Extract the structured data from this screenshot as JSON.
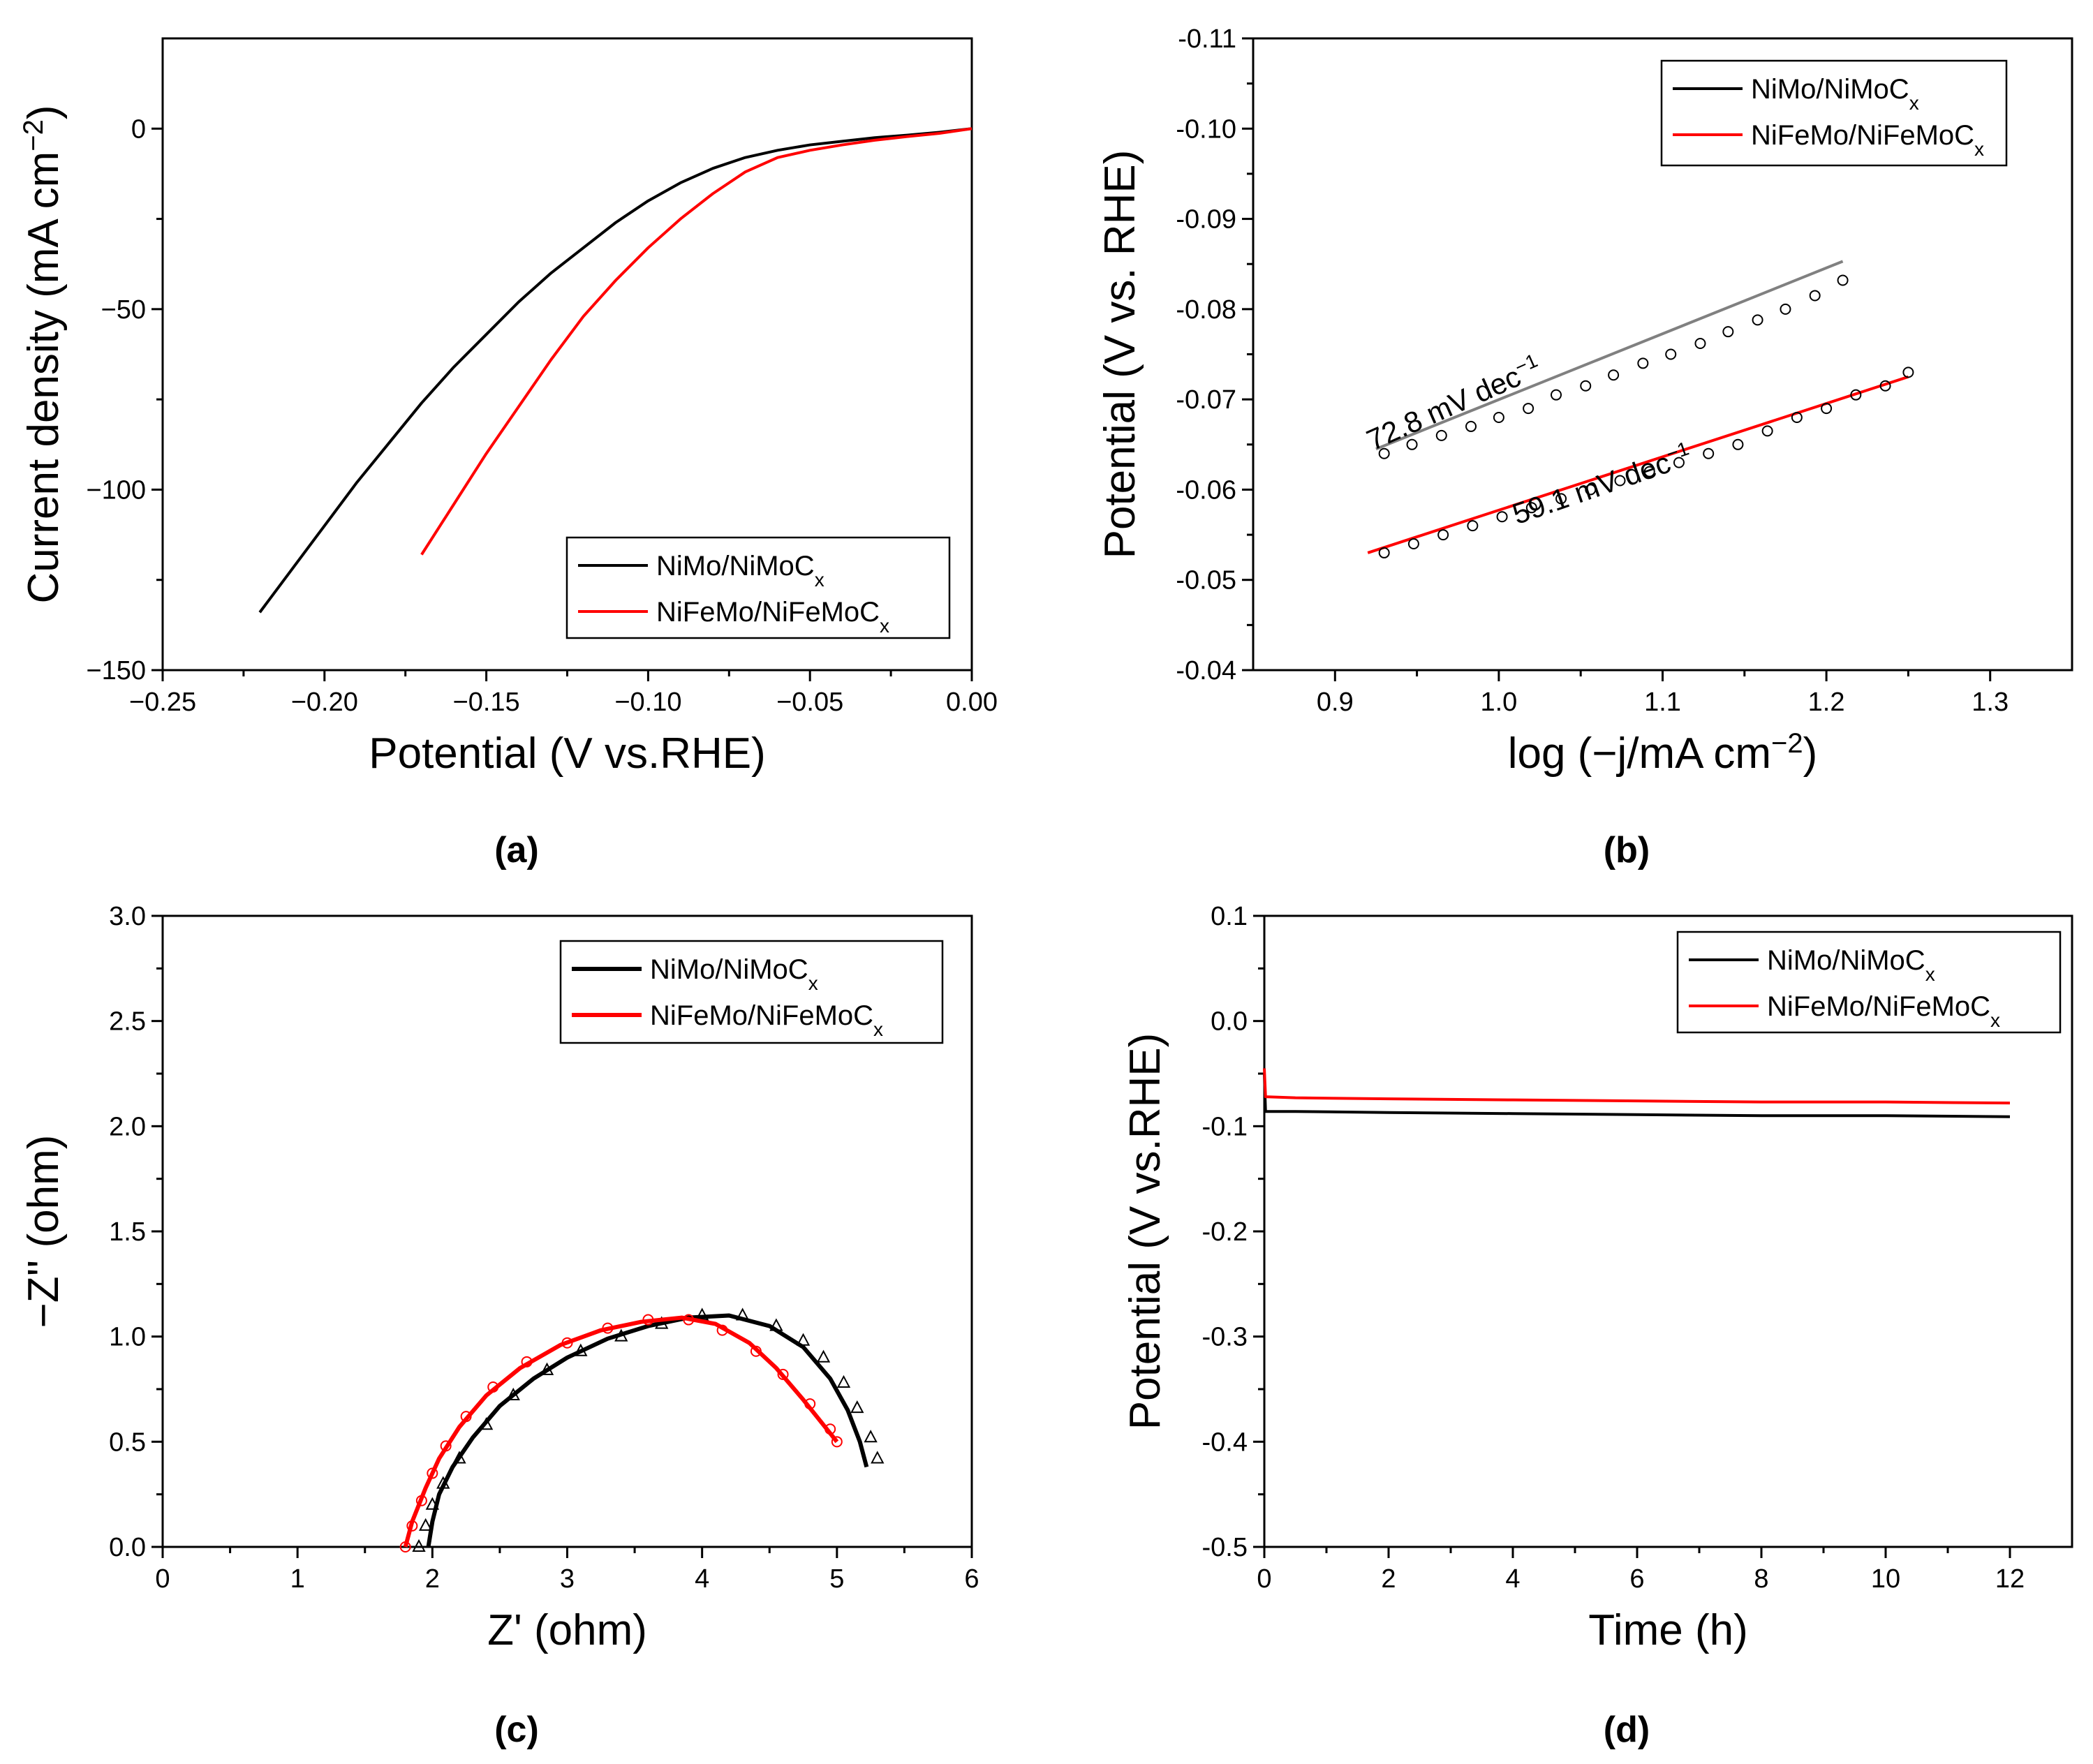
{
  "chart_data": [
    {
      "panel": "(a)",
      "type": "line",
      "xlabel": "Potential (V vs.RHE)",
      "ylabel": "Current density (mA cm",
      "ylabel_sup": "−2",
      "ylabel_end": ")",
      "xlim": [
        -0.25,
        0.0
      ],
      "ylim": [
        -150,
        25
      ],
      "xticks": [
        -0.25,
        -0.2,
        -0.15,
        -0.1,
        -0.05,
        0.0
      ],
      "xtick_labels": [
        "−0.25",
        "−0.20",
        "−0.15",
        "−0.10",
        "−0.05",
        "0.00"
      ],
      "yticks": [
        -150,
        -100,
        -50,
        0
      ],
      "ytick_labels": [
        "−150",
        "−100",
        "−50",
        "0"
      ],
      "legend": "bottom-right",
      "series": [
        {
          "name": "NiMo/NiMoC",
          "sub": "x",
          "color": "#000000",
          "x": [
            -0.22,
            -0.21,
            -0.2,
            -0.19,
            -0.18,
            -0.17,
            -0.16,
            -0.15,
            -0.14,
            -0.13,
            -0.12,
            -0.11,
            -0.1,
            -0.09,
            -0.08,
            -0.07,
            -0.06,
            -0.05,
            -0.04,
            -0.03,
            -0.02,
            -0.01,
            0.0
          ],
          "y": [
            -134,
            -122,
            -110,
            -98,
            -87,
            -76,
            -66,
            -57,
            -48,
            -40,
            -33,
            -26,
            -20,
            -15,
            -11,
            -8,
            -6,
            -4.5,
            -3.5,
            -2.5,
            -1.8,
            -1,
            0
          ]
        },
        {
          "name": "NiFeMo/NiFeMoC",
          "sub": "x",
          "color": "#ff0000",
          "x": [
            -0.17,
            -0.16,
            -0.15,
            -0.14,
            -0.13,
            -0.12,
            -0.11,
            -0.1,
            -0.09,
            -0.08,
            -0.07,
            -0.06,
            -0.05,
            -0.04,
            -0.03,
            -0.02,
            -0.01,
            0.0
          ],
          "y": [
            -118,
            -104,
            -90,
            -77,
            -64,
            -52,
            -42,
            -33,
            -25,
            -18,
            -12,
            -8,
            -6,
            -4.5,
            -3.2,
            -2.2,
            -1.3,
            0
          ]
        }
      ]
    },
    {
      "panel": "(b)",
      "type": "scatter",
      "xlabel": "log (−j/mA cm",
      "xlabel_sup": "−2",
      "xlabel_end": ")",
      "ylabel": "Potential (V vs. RHE)",
      "xlim": [
        0.85,
        1.35
      ],
      "ylim": [
        -0.04,
        -0.11
      ],
      "xticks": [
        0.9,
        1.0,
        1.1,
        1.2,
        1.3
      ],
      "xtick_labels": [
        "0.9",
        "1.0",
        "1.1",
        "1.2",
        "1.3"
      ],
      "yticks": [
        -0.04,
        -0.05,
        -0.06,
        -0.07,
        -0.08,
        -0.09,
        -0.1,
        -0.11
      ],
      "ytick_labels": [
        "-0.04",
        "-0.05",
        "-0.06",
        "-0.07",
        "-0.08",
        "-0.09",
        "-0.10",
        "-0.11"
      ],
      "legend": "top-right",
      "annotations": [
        {
          "text": "72.8 mV dec",
          "sup": "−1",
          "x": 0.975,
          "y": -0.0685,
          "angle_deg": -24
        },
        {
          "text": "59.1 mV dec",
          "sup": "−1",
          "x": 1.065,
          "y": -0.0595,
          "angle_deg": -19
        }
      ],
      "series": [
        {
          "name": "NiMo/NiMoC",
          "sub": "x",
          "color": "#000000",
          "fit_color": "#808080",
          "x": [
            0.93,
            0.947,
            0.965,
            0.983,
            1.0,
            1.018,
            1.035,
            1.053,
            1.07,
            1.088,
            1.105,
            1.123,
            1.14,
            1.158,
            1.175,
            1.193,
            1.21
          ],
          "y": [
            -0.064,
            -0.065,
            -0.066,
            -0.067,
            -0.068,
            -0.069,
            -0.0705,
            -0.0715,
            -0.0727,
            -0.074,
            -0.075,
            -0.0762,
            -0.0775,
            -0.0788,
            -0.08,
            -0.0815,
            -0.0832
          ],
          "fit_x": [
            0.925,
            1.21
          ],
          "fit_y": [
            -0.0645,
            -0.0853
          ]
        },
        {
          "name": "NiFeMo/NiFeMoC",
          "sub": "x",
          "color": "#000000",
          "fit_color": "#ff0000",
          "x": [
            0.93,
            0.948,
            0.966,
            0.984,
            1.002,
            1.02,
            1.038,
            1.056,
            1.074,
            1.092,
            1.11,
            1.128,
            1.146,
            1.164,
            1.182,
            1.2,
            1.218,
            1.236,
            1.25
          ],
          "y": [
            -0.053,
            -0.054,
            -0.055,
            -0.056,
            -0.057,
            -0.058,
            -0.059,
            -0.06,
            -0.061,
            -0.062,
            -0.063,
            -0.064,
            -0.065,
            -0.0665,
            -0.068,
            -0.069,
            -0.0705,
            -0.0715,
            -0.073
          ],
          "fit_x": [
            0.92,
            1.25
          ],
          "fit_y": [
            -0.053,
            -0.0725
          ]
        }
      ]
    },
    {
      "panel": "(c)",
      "type": "scatter",
      "xlabel": "Z' (ohm)",
      "ylabel": "−Z'' (ohm)",
      "xlim": [
        0,
        6
      ],
      "ylim": [
        0,
        3.0
      ],
      "xticks": [
        0,
        1,
        2,
        3,
        4,
        5,
        6
      ],
      "xtick_labels": [
        "0",
        "1",
        "2",
        "3",
        "4",
        "5",
        "6"
      ],
      "yticks": [
        0,
        0.5,
        1.0,
        1.5,
        2.0,
        2.5,
        3.0
      ],
      "ytick_labels": [
        "0.0",
        "0.5",
        "1.0",
        "1.5",
        "2.0",
        "2.5",
        "3.0"
      ],
      "legend": "top-right",
      "series": [
        {
          "name": "NiMo/NiMoC",
          "sub": "x",
          "color": "#000000",
          "marker": "triangle",
          "x": [
            1.9,
            1.95,
            2.0,
            2.08,
            2.2,
            2.4,
            2.6,
            2.85,
            3.1,
            3.4,
            3.7,
            4.0,
            4.3,
            4.55,
            4.75,
            4.9,
            5.05,
            5.15,
            5.25,
            5.3
          ],
          "y": [
            0.0,
            0.1,
            0.2,
            0.3,
            0.42,
            0.58,
            0.72,
            0.84,
            0.93,
            1.0,
            1.06,
            1.1,
            1.1,
            1.05,
            0.98,
            0.9,
            0.78,
            0.66,
            0.52,
            0.42
          ],
          "fit_x": [
            1.97,
            2.0,
            2.05,
            2.15,
            2.3,
            2.5,
            2.75,
            3.0,
            3.3,
            3.6,
            3.9,
            4.2,
            4.5,
            4.75,
            4.95,
            5.08,
            5.17,
            5.22
          ],
          "fit_y": [
            0.0,
            0.12,
            0.25,
            0.38,
            0.52,
            0.67,
            0.8,
            0.9,
            0.99,
            1.05,
            1.09,
            1.1,
            1.05,
            0.95,
            0.8,
            0.65,
            0.5,
            0.38
          ]
        },
        {
          "name": "NiFeMo/NiFeMoC",
          "sub": "x",
          "color": "#ff0000",
          "marker": "circle",
          "x": [
            1.8,
            1.85,
            1.92,
            2.0,
            2.1,
            2.25,
            2.45,
            2.7,
            3.0,
            3.3,
            3.6,
            3.9,
            4.15,
            4.4,
            4.6,
            4.8,
            4.95,
            5.0
          ],
          "y": [
            0.0,
            0.1,
            0.22,
            0.35,
            0.48,
            0.62,
            0.76,
            0.88,
            0.97,
            1.04,
            1.08,
            1.08,
            1.03,
            0.93,
            0.82,
            0.68,
            0.56,
            0.5
          ],
          "fit_x": [
            1.8,
            1.85,
            1.95,
            2.05,
            2.2,
            2.4,
            2.65,
            2.95,
            3.25,
            3.55,
            3.85,
            4.1,
            4.35,
            4.55,
            4.75,
            4.9,
            5.0
          ],
          "fit_y": [
            0.0,
            0.12,
            0.28,
            0.42,
            0.57,
            0.72,
            0.85,
            0.96,
            1.03,
            1.07,
            1.09,
            1.06,
            0.97,
            0.85,
            0.7,
            0.58,
            0.5
          ]
        }
      ]
    },
    {
      "panel": "(d)",
      "type": "line",
      "xlabel": "Time (h)",
      "ylabel": "Potential (V vs.RHE)",
      "xlim": [
        0,
        13
      ],
      "ylim": [
        -0.5,
        0.1
      ],
      "xticks": [
        0,
        2,
        4,
        6,
        8,
        10,
        12
      ],
      "xtick_labels": [
        "0",
        "2",
        "4",
        "6",
        "8",
        "10",
        "12"
      ],
      "yticks": [
        -0.5,
        -0.4,
        -0.3,
        -0.2,
        -0.1,
        0.0,
        0.1
      ],
      "ytick_labels": [
        "-0.5",
        "-0.4",
        "-0.3",
        "-0.2",
        "-0.1",
        "0.0",
        "0.1"
      ],
      "legend": "top-right",
      "series": [
        {
          "name": "NiMo/NiMoC",
          "sub": "x",
          "color": "#000000",
          "x": [
            0,
            0.02,
            0.5,
            2,
            4,
            6,
            8,
            10,
            12
          ],
          "y": [
            -0.05,
            -0.086,
            -0.086,
            -0.087,
            -0.088,
            -0.089,
            -0.09,
            -0.09,
            -0.091
          ]
        },
        {
          "name": "NiFeMo/NiFeMoC",
          "sub": "x",
          "color": "#ff0000",
          "x": [
            0,
            0.02,
            0.5,
            2,
            4,
            6,
            8,
            10,
            12
          ],
          "y": [
            -0.045,
            -0.072,
            -0.073,
            -0.074,
            -0.075,
            -0.076,
            -0.077,
            -0.077,
            -0.078
          ]
        }
      ]
    }
  ]
}
